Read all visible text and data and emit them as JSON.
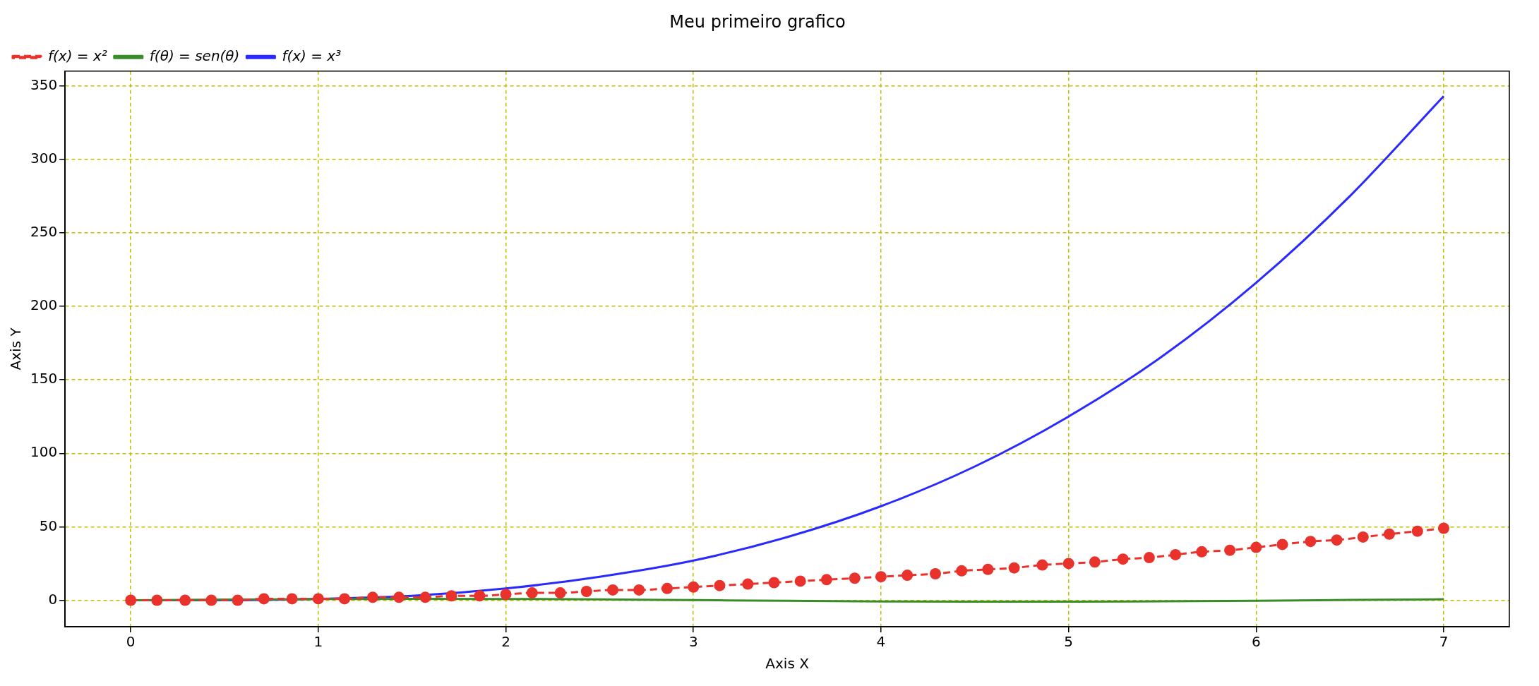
{
  "chart_data": {
    "type": "line",
    "title": "Meu primeiro grafico",
    "xlabel": "Axis X",
    "ylabel": "Axis Y",
    "xlim": [
      -0.35,
      7.35
    ],
    "ylim": [
      -18,
      360
    ],
    "xticks": [
      0,
      1,
      2,
      3,
      4,
      5,
      6,
      7
    ],
    "yticks": [
      0,
      50,
      100,
      150,
      200,
      250,
      300,
      350
    ],
    "grid": true,
    "legend": "top left",
    "series": [
      {
        "name": "f(x) = x²",
        "color": "#e8322b",
        "marker": "circle",
        "line_style": "dashed",
        "x": [
          0,
          0.14,
          0.29,
          0.43,
          0.57,
          0.71,
          0.86,
          1,
          1.14,
          1.29,
          1.43,
          1.57,
          1.71,
          1.86,
          2,
          2.14,
          2.29,
          2.43,
          2.57,
          2.71,
          2.86,
          3,
          3.14,
          3.29,
          3.43,
          3.57,
          3.71,
          3.86,
          4,
          4.14,
          4.29,
          4.43,
          4.57,
          4.71,
          4.86,
          5,
          5.14,
          5.29,
          5.43,
          5.57,
          5.71,
          5.86,
          6,
          6.14,
          6.29,
          6.43,
          6.57,
          6.71,
          6.86,
          7
        ],
        "values": [
          0,
          0,
          0,
          0,
          0,
          1,
          1,
          1,
          1,
          2,
          2,
          2,
          3,
          3,
          4,
          5,
          5,
          6,
          7,
          7,
          8,
          9,
          10,
          11,
          12,
          13,
          14,
          15,
          16,
          17,
          18,
          20,
          21,
          22,
          24,
          25,
          26,
          28,
          29,
          31,
          33,
          34,
          36,
          38,
          40,
          41,
          43,
          45,
          47,
          49
        ]
      },
      {
        "name": "f(θ) = sen(θ)",
        "color": "#3a8c2a",
        "marker": "none",
        "line_style": "solid",
        "x": [
          0,
          0.5,
          1,
          1.5,
          2,
          2.5,
          3,
          3.5,
          4,
          4.5,
          5,
          5.5,
          6,
          6.5,
          7
        ],
        "values": [
          0,
          0.5,
          0.8,
          1,
          0.9,
          0.6,
          0.1,
          -0.4,
          -0.8,
          -1,
          -1,
          -0.7,
          -0.3,
          0.2,
          0.7
        ]
      },
      {
        "name": "f(x) = x³",
        "color": "#2a2aff",
        "marker": "none",
        "line_style": "solid",
        "x": [
          0,
          0.5,
          1,
          1.5,
          2,
          2.5,
          3,
          3.5,
          4,
          4.5,
          5,
          5.5,
          6,
          6.5,
          7
        ],
        "values": [
          0,
          0,
          1,
          3,
          8,
          16,
          27,
          43,
          64,
          91,
          125,
          166,
          216,
          275,
          343
        ]
      }
    ]
  }
}
